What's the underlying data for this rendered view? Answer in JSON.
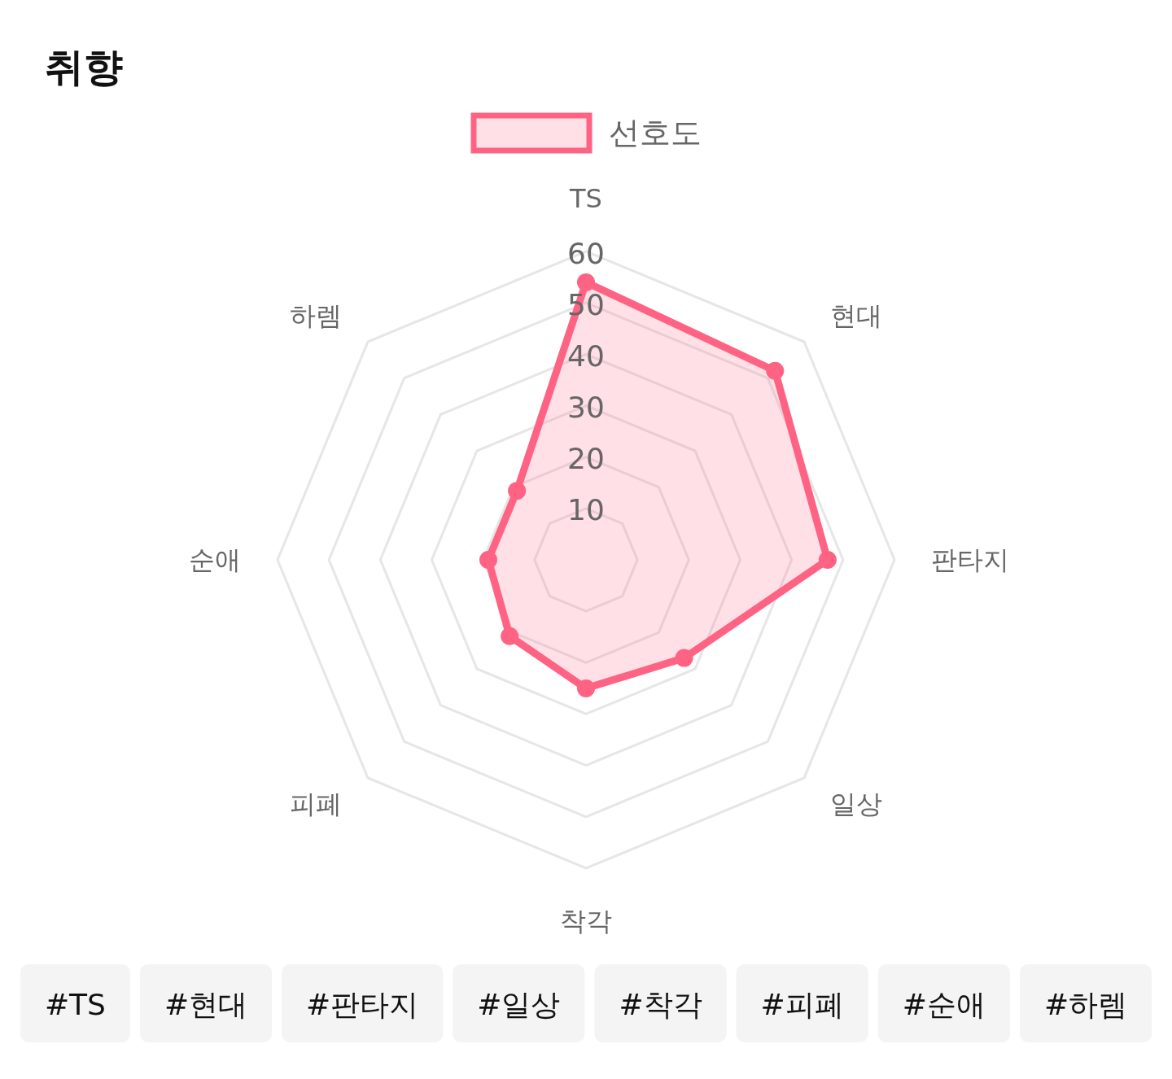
{
  "chart_data": {
    "type": "radar",
    "title": "취향",
    "categories": [
      "TS",
      "현대",
      "판타지",
      "일상",
      "착각",
      "피폐",
      "순애",
      "하렘"
    ],
    "series": [
      {
        "name": "선호도",
        "color": "#ff6384",
        "values": [
          54,
          52,
          47,
          27,
          25,
          21,
          19,
          19
        ]
      }
    ],
    "ylim": [
      0,
      60
    ],
    "yticks": [
      10,
      20,
      30,
      40,
      50,
      60
    ],
    "grid": true,
    "legend": "top",
    "marker": "circle",
    "annotations": [
      "#TS",
      "#현대",
      "#판타지",
      "#일상",
      "#착각",
      "#피폐",
      "#순애",
      "#하렘"
    ]
  }
}
